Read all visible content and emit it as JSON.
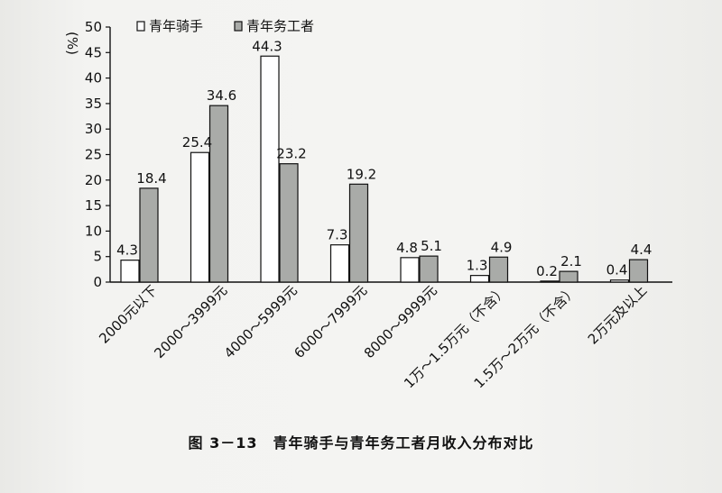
{
  "chart_data": {
    "type": "bar",
    "ylabel": "%",
    "ylim": [
      0,
      50
    ],
    "yticks": [
      0,
      5,
      10,
      15,
      20,
      25,
      30,
      35,
      40,
      45,
      50
    ],
    "categories": [
      "2000元以下",
      "2000～3999元",
      "4000～5999元",
      "6000～7999元",
      "8000～9999元",
      "1万～1.5万元（不含）",
      "1.5万～2万元（不含）",
      "2万元及以上"
    ],
    "series": [
      {
        "name": "青年骑手",
        "values": [
          4.3,
          25.4,
          44.3,
          7.3,
          4.8,
          1.3,
          0.2,
          0.4
        ],
        "color": "#ffffff"
      },
      {
        "name": "青年务工者",
        "values": [
          18.4,
          34.6,
          23.2,
          19.2,
          5.1,
          4.9,
          2.1,
          4.4
        ],
        "color": "#a9aba8"
      }
    ],
    "legend": "top-left",
    "grid": false,
    "caption": "图 3－13　青年骑手与青年务工者月收入分布对比"
  }
}
